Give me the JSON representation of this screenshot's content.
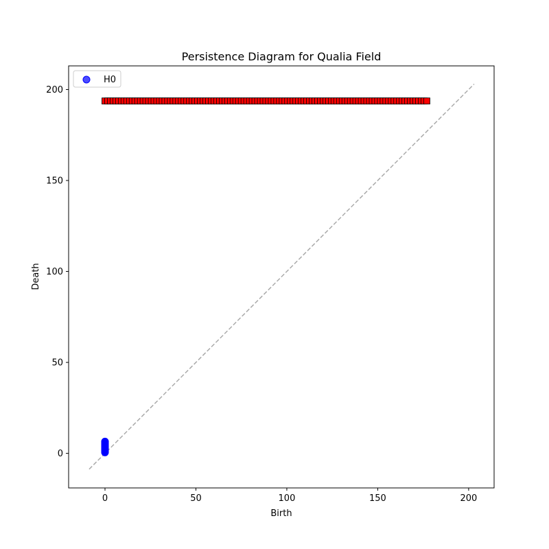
{
  "chart_data": {
    "type": "scatter",
    "title": "Persistence Diagram for Qualia Field",
    "xlabel": "Birth",
    "ylabel": "Death",
    "xlim": [
      -20,
      214
    ],
    "ylim": [
      -19,
      213
    ],
    "xticks": [
      0,
      50,
      100,
      150,
      200
    ],
    "yticks": [
      0,
      50,
      100,
      150,
      200
    ],
    "grid": false,
    "legend": {
      "position": "top-left",
      "entries": [
        "H0"
      ]
    },
    "series": [
      {
        "name": "H0",
        "marker": "circle",
        "color": "#0000ff",
        "points": [
          [
            0,
            0.5
          ],
          [
            0,
            0.8
          ],
          [
            0,
            1.1
          ],
          [
            0,
            1.4
          ],
          [
            0,
            1.7
          ],
          [
            0,
            2.0
          ],
          [
            0,
            2.3
          ],
          [
            0,
            2.6
          ],
          [
            0,
            2.9
          ],
          [
            0,
            3.2
          ],
          [
            0,
            3.5
          ],
          [
            0,
            3.8
          ],
          [
            0,
            4.1
          ],
          [
            0,
            4.4
          ],
          [
            0,
            4.7
          ],
          [
            0,
            5.0
          ],
          [
            0,
            5.3
          ],
          [
            0,
            5.6
          ],
          [
            0,
            5.9
          ],
          [
            0,
            6.2
          ],
          [
            0,
            6.5
          ]
        ]
      },
      {
        "marker": "square",
        "color": "#ff0000",
        "x_start": 0,
        "x_end": 177,
        "x_step": 1.5,
        "y": 193.7
      }
    ],
    "diagonal": {
      "from": -8.7,
      "to": 203,
      "color": "#aaaaaa",
      "style": "dashed"
    }
  }
}
